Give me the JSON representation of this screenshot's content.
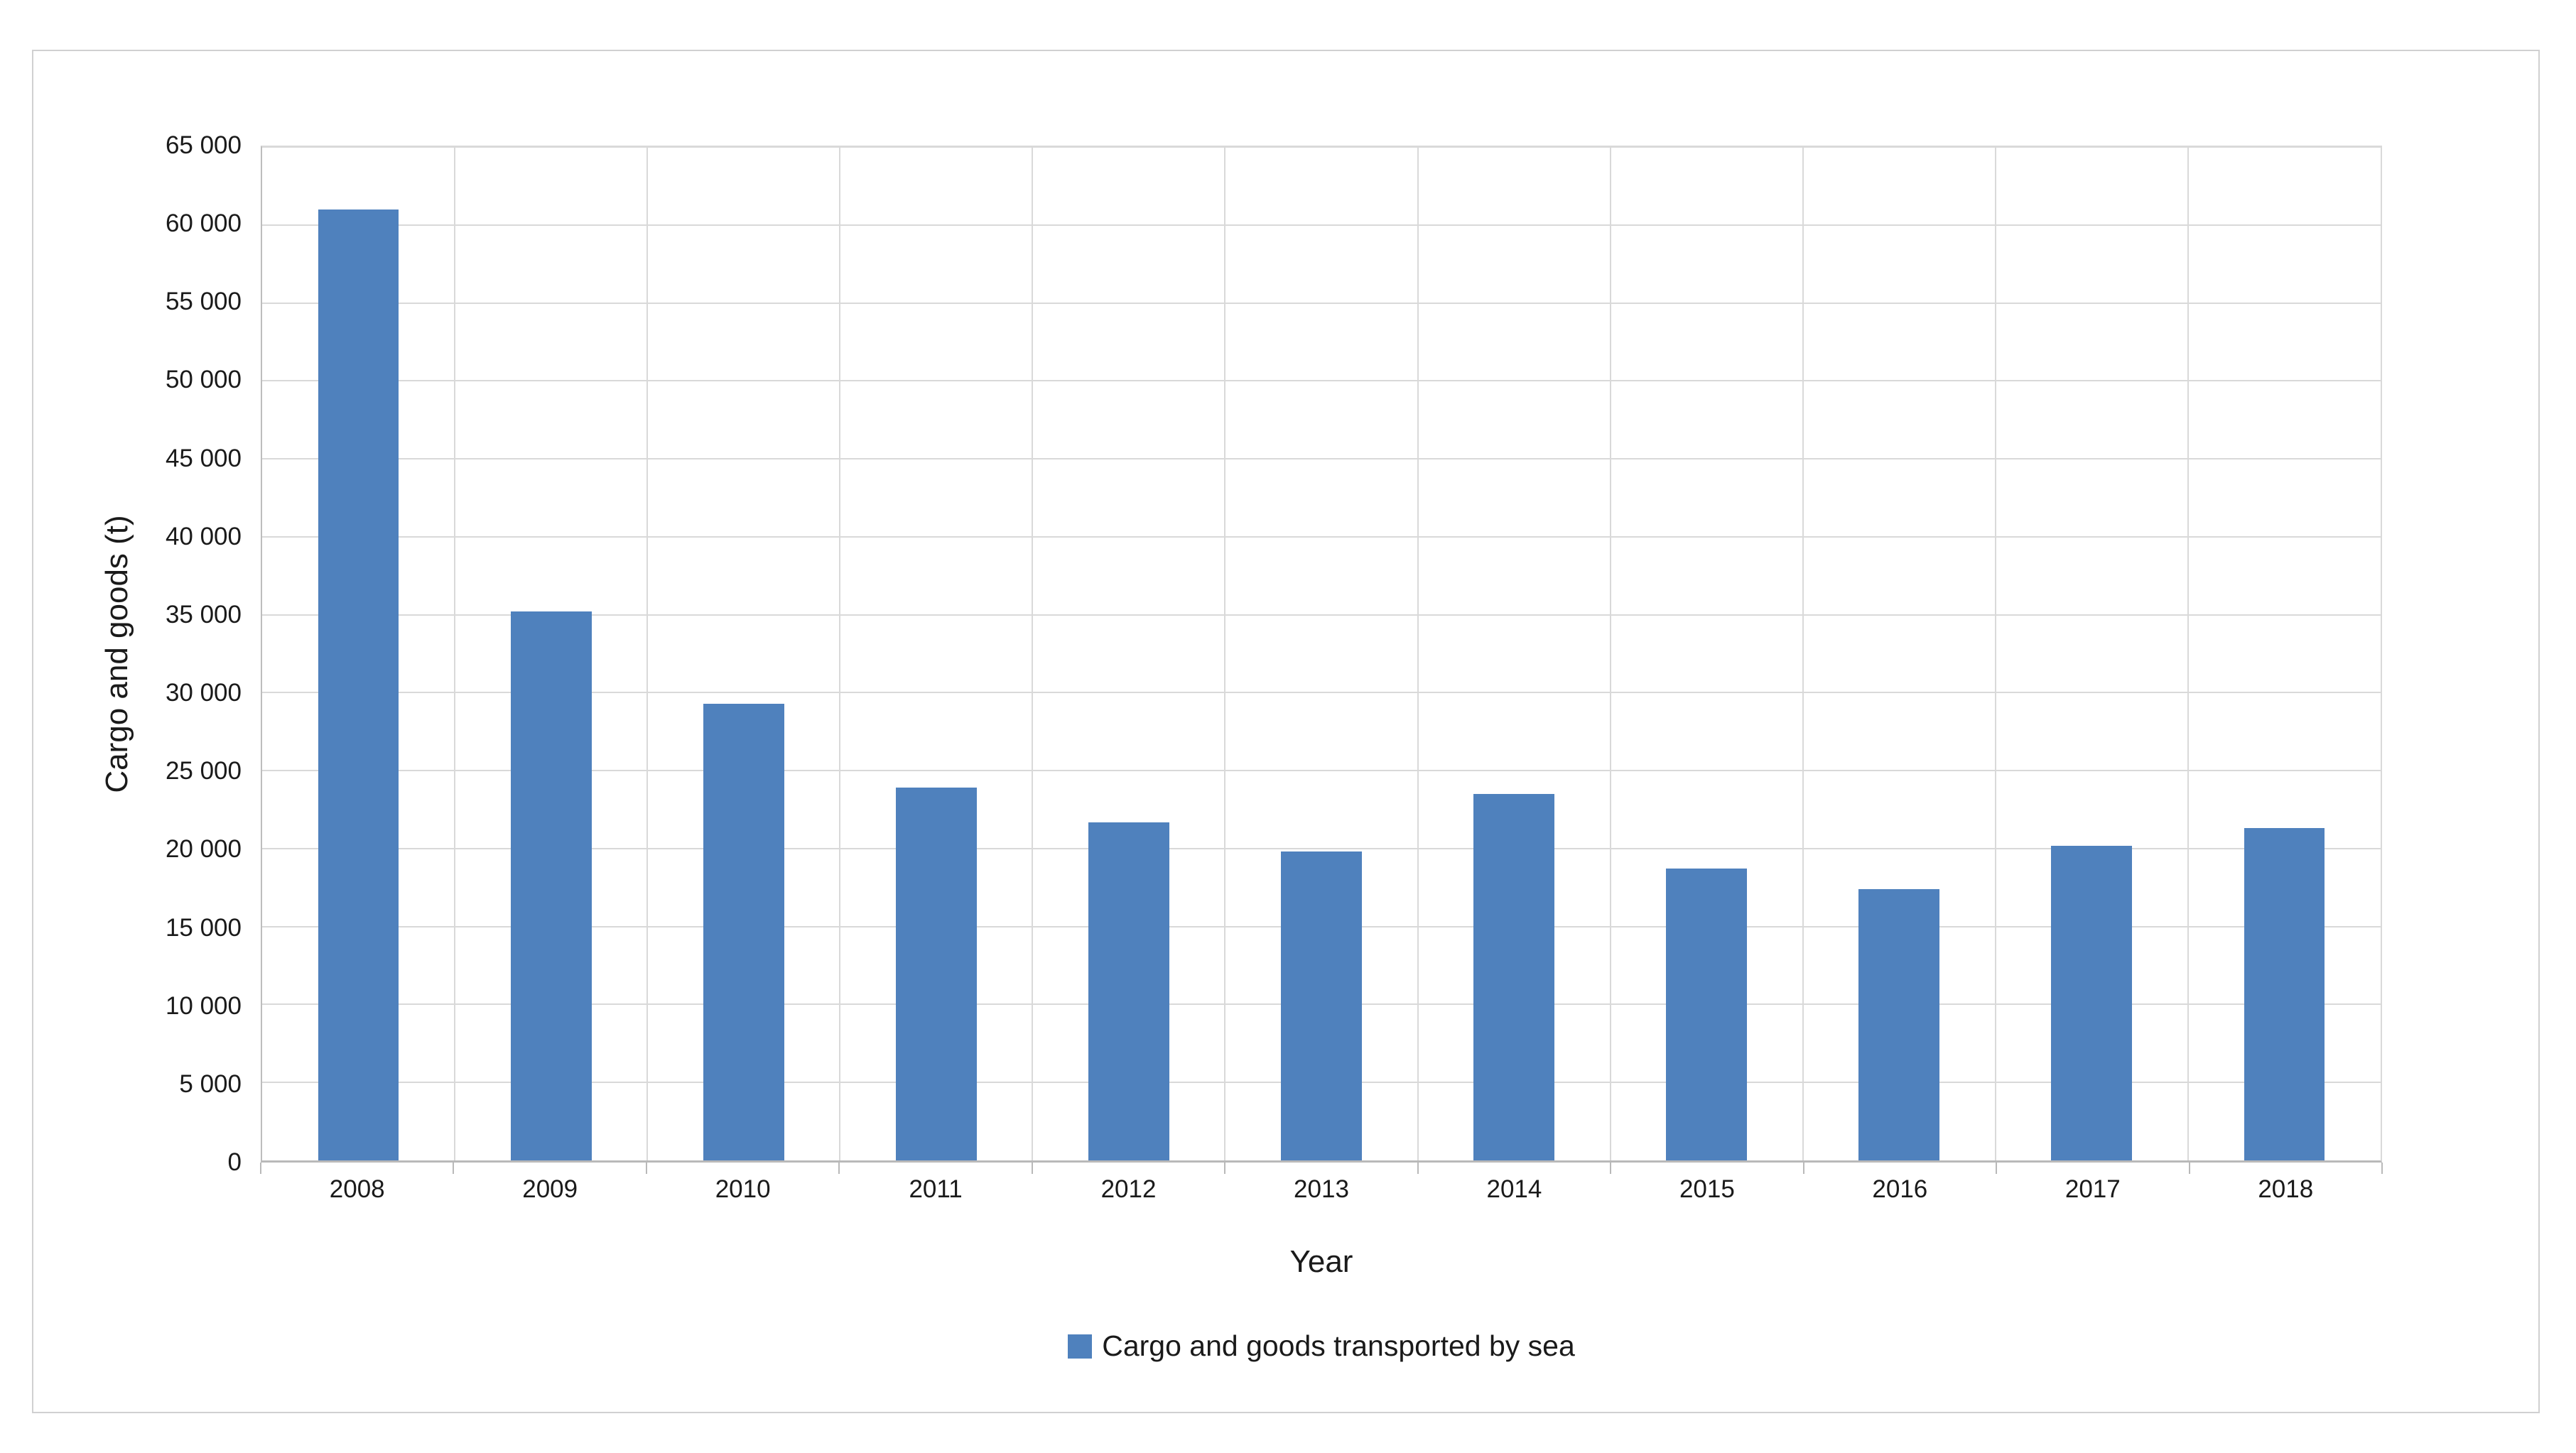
{
  "page": {
    "background": "#ffffff"
  },
  "chart": {
    "frame_border_color": "#d0d0d1",
    "axis_color": "#b9b9b9",
    "grid_color": "#d9d9d9",
    "text_color": "#1a1a1a"
  },
  "chart_data": {
    "type": "bar",
    "title": "",
    "xlabel": "Year",
    "ylabel": "Cargo and goods (t)",
    "categories": [
      "2008",
      "2009",
      "2010",
      "2011",
      "2012",
      "2013",
      "2014",
      "2015",
      "2016",
      "2017",
      "2018"
    ],
    "values": [
      61000,
      35200,
      29300,
      23900,
      21700,
      19800,
      23500,
      18700,
      17400,
      20200,
      21300
    ],
    "series_name": "Cargo and goods transported by sea",
    "ylim": [
      0,
      65000
    ],
    "ytick_step": 5000,
    "ytick_labels": [
      "0",
      "5 000",
      "10 000",
      "15 000",
      "20 000",
      "25 000",
      "30 000",
      "35 000",
      "40 000",
      "45 000",
      "50 000",
      "55 000",
      "60 000",
      "65 000"
    ],
    "bar_color": "#4f81bd",
    "grid": true,
    "legend": {
      "position": "bottom",
      "items": [
        {
          "label": "Cargo and goods transported by sea",
          "color": "#4f81bd"
        }
      ]
    }
  }
}
